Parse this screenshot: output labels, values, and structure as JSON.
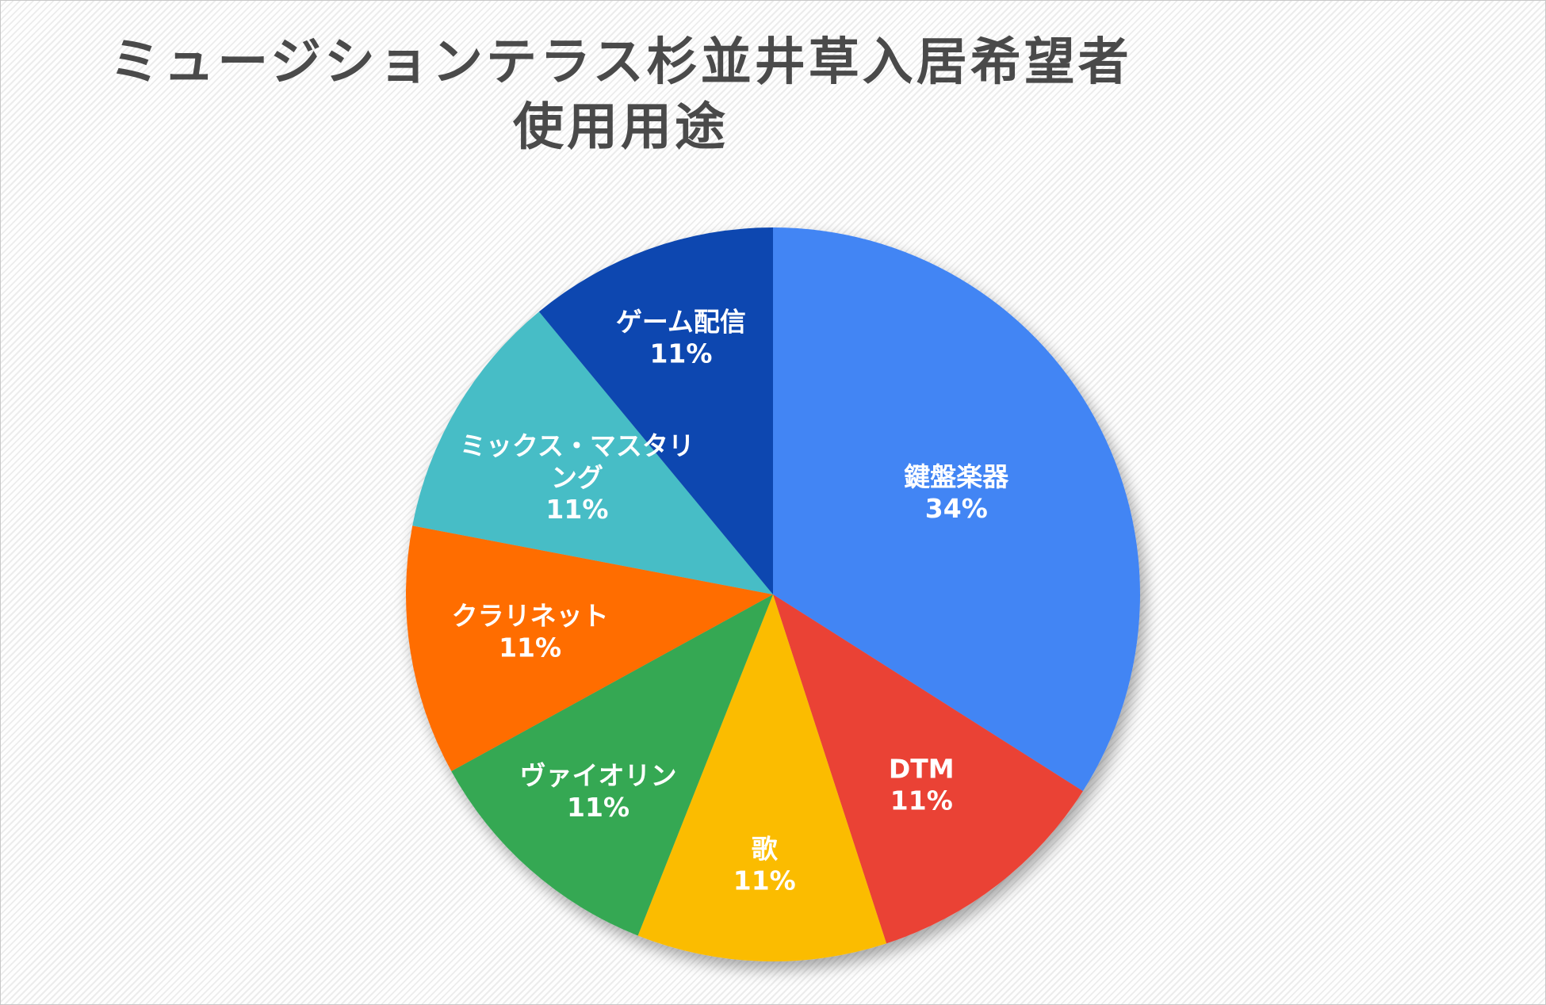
{
  "chart_data": {
    "type": "pie",
    "title": [
      "ミュージションテラス杉並井草入居希望者",
      "使用用途"
    ],
    "slices": [
      {
        "label": "鍵盤楽器",
        "label_lines": [
          "鍵盤楽器"
        ],
        "value": 34,
        "percent_label": "34%",
        "color": "#4285f4"
      },
      {
        "label": "DTM",
        "label_lines": [
          "DTM"
        ],
        "value": 11,
        "percent_label": "11%",
        "color": "#ea4335"
      },
      {
        "label": "歌",
        "label_lines": [
          "歌"
        ],
        "value": 11,
        "percent_label": "11%",
        "color": "#fbbc04"
      },
      {
        "label": "ヴァイオリン",
        "label_lines": [
          "ヴァイオリン"
        ],
        "value": 11,
        "percent_label": "11%",
        "color": "#34a853"
      },
      {
        "label": "クラリネット",
        "label_lines": [
          "クラリネット"
        ],
        "value": 11,
        "percent_label": "11%",
        "color": "#ff6d01"
      },
      {
        "label": "ミックス・マスタリング",
        "label_lines": [
          "ミックス・マスタリ",
          "ング"
        ],
        "value": 11,
        "percent_label": "11%",
        "color": "#46bdc6"
      },
      {
        "label": "ゲーム配信",
        "label_lines": [
          "ゲーム配信"
        ],
        "value": 11,
        "percent_label": "11%",
        "color": "#0b47b0"
      }
    ],
    "legend": "none",
    "start_angle": "12 o'clock",
    "direction": "clockwise"
  }
}
